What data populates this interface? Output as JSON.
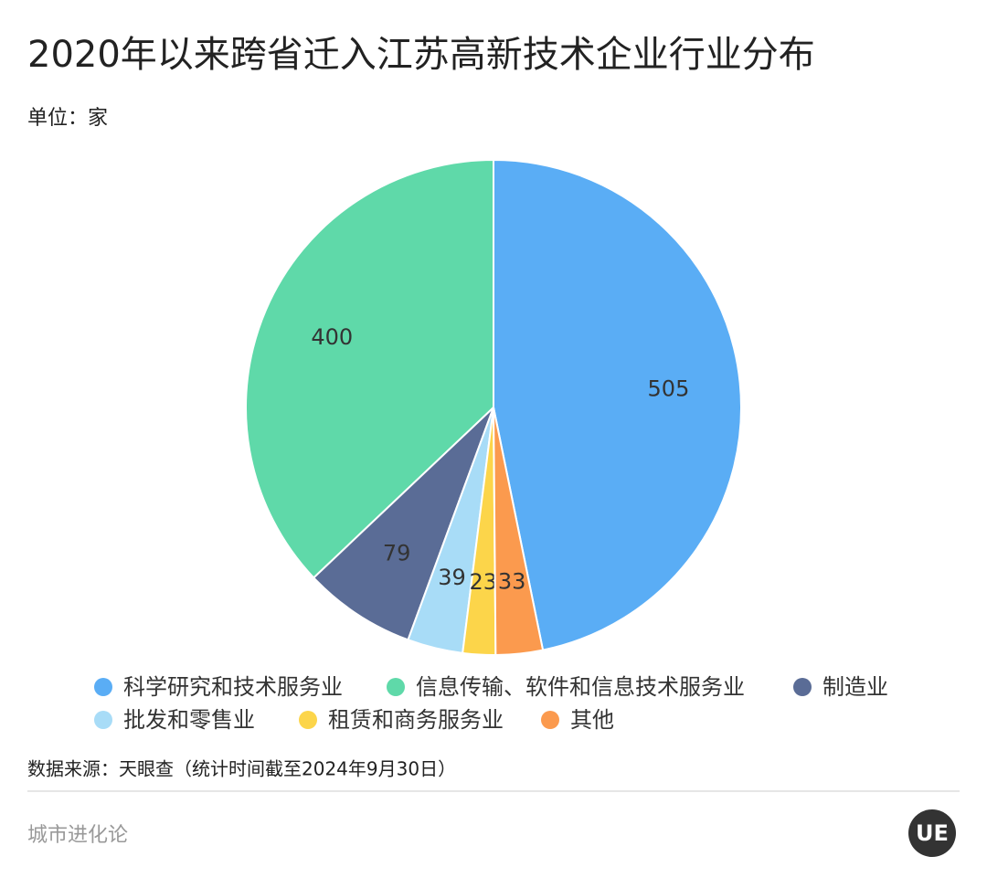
{
  "chart_data": {
    "type": "pie",
    "title": "2020年以来跨省迁入江苏高新技术企业行业分布",
    "subtitle": "单位：家",
    "categories": [
      "科学研究和技术服务业",
      "信息传输、软件和信息技术服务业",
      "制造业",
      "批发和零售业",
      "租赁和商务服务业",
      "其他"
    ],
    "values": [
      505,
      400,
      79,
      39,
      23,
      33
    ],
    "colors": [
      "#5aadf5",
      "#5fd9a9",
      "#5a6c96",
      "#a8dcf7",
      "#fcd54a",
      "#fb9a4e"
    ],
    "source": "数据来源：天眼查（统计时间截至2024年9月30日）"
  },
  "footer": {
    "brand": "城市进化论",
    "logo": "UE"
  }
}
